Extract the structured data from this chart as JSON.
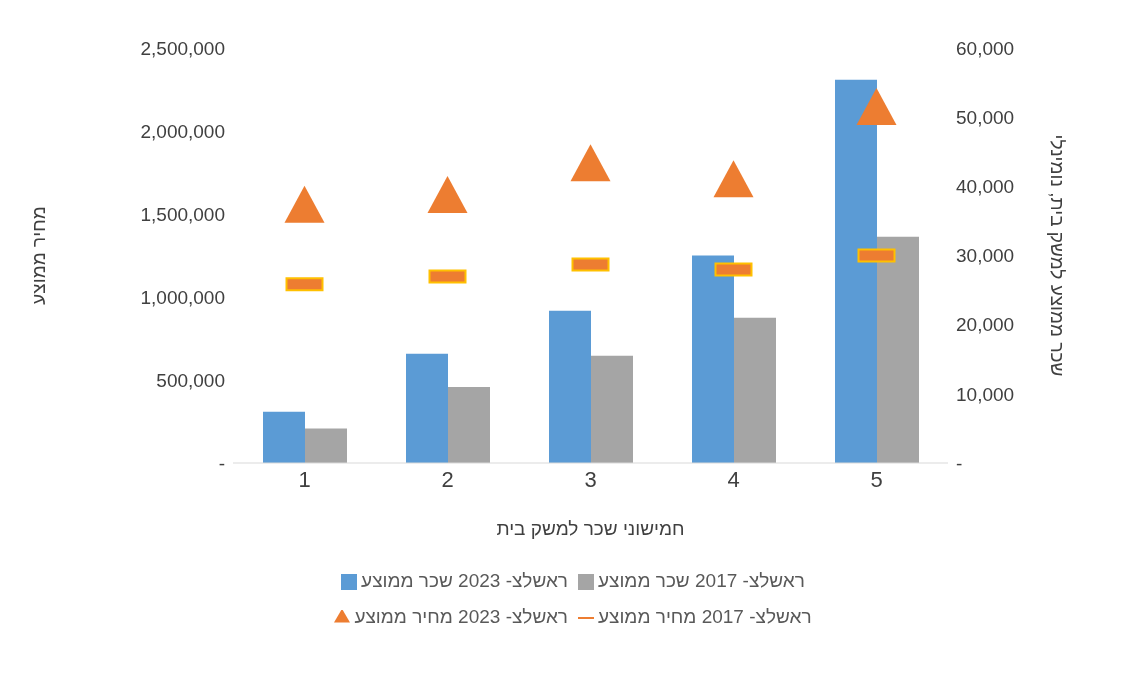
{
  "chart_data": {
    "type": "bar",
    "xlabel": "חמישוני שכר למשק בית",
    "ylabel": "מחיר ממוצע",
    "y2label": "שכר ממוצע למשק בית, נומינלי",
    "categories": [
      "1",
      "2",
      "3",
      "4",
      "5"
    ],
    "series": [
      {
        "name": "ראשלצ- 2023 שכר ממוצע",
        "axis": "y2",
        "color": "#5b9bd5",
        "values": [
          7400,
          15800,
          22000,
          30000,
          55400
        ]
      },
      {
        "name": "ראשלצ- 2017 שכר ממוצע",
        "axis": "y2",
        "color": "#a5a5a5",
        "values": [
          5000,
          11000,
          15500,
          21000,
          32700
        ]
      },
      {
        "name": "ראשלצ- 2023 מחיר ממוצע",
        "type": "scatter",
        "axis": "y",
        "marker": "triangle",
        "color": "#ed7d31",
        "values": [
          1555000,
          1615000,
          1805000,
          1710000,
          2145000
        ]
      },
      {
        "name": "ראשלצ- 2017 מחיר ממוצע",
        "type": "scatter",
        "axis": "y",
        "color": "#ed7d31",
        "values": [
          1077000,
          1124000,
          1196000,
          1166000,
          1250000
        ]
      }
    ],
    "ylim": [
      0,
      2500000
    ],
    "yticks": [
      {
        "value": 0,
        "label": "-"
      },
      {
        "value": 500000,
        "label": "500,000"
      },
      {
        "value": 1000000,
        "label": "1,000,000"
      },
      {
        "value": 1500000,
        "label": "1,500,000"
      },
      {
        "value": 2000000,
        "label": "2,000,000"
      },
      {
        "value": 2500000,
        "label": "2,500,000"
      }
    ],
    "y2lim": [
      0,
      60000
    ],
    "y2ticks": [
      {
        "value": 0,
        "label": "-"
      },
      {
        "value": 10000,
        "label": "10,000"
      },
      {
        "value": 20000,
        "label": "20,000"
      },
      {
        "value": 30000,
        "label": "30,000"
      },
      {
        "value": 40000,
        "label": "40,000"
      },
      {
        "value": 50000,
        "label": "50,000"
      },
      {
        "value": 60000,
        "label": "60,000"
      }
    ],
    "grid": false,
    "legend": "bottom"
  }
}
